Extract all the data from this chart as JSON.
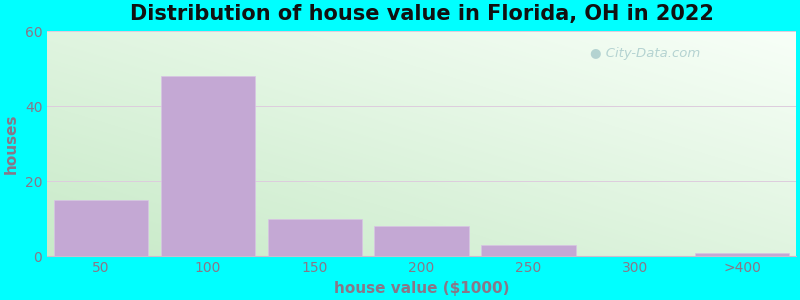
{
  "title": "Distribution of house value in Florida, OH in 2022",
  "xlabel": "house value ($1000)",
  "ylabel": "houses",
  "bar_labels": [
    "50",
    "100",
    "150",
    "200",
    "250",
    "300",
    ">400"
  ],
  "bar_values": [
    15,
    48,
    10,
    8,
    3,
    0,
    1
  ],
  "bar_color": "#c4a8d4",
  "bar_edge_color": "#d8c4e4",
  "ylim": [
    0,
    60
  ],
  "yticks": [
    0,
    20,
    40,
    60
  ],
  "figure_bg": "#00ffff",
  "gradient_top_left": "#c8eac8",
  "gradient_bottom_right": "#f5fff5",
  "watermark_text": "City-Data.com",
  "watermark_color": "#aacccc",
  "grid_color": "#ddccdd",
  "tick_color": "#887788",
  "label_color": "#887788",
  "title_fontsize": 15,
  "axis_label_fontsize": 11,
  "tick_fontsize": 10
}
